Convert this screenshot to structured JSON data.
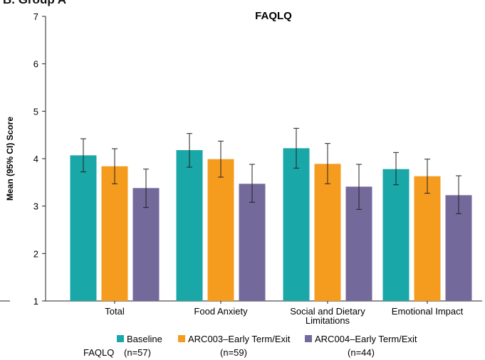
{
  "panel_label": "B. Group A",
  "chart_data": {
    "type": "bar",
    "title": "FAQLQ",
    "ylabel": "Mean (95% CI) Score",
    "xlabel": "",
    "ylim": [
      1,
      7
    ],
    "yticks": [
      1,
      2,
      3,
      4,
      5,
      6,
      7
    ],
    "categories": [
      [
        "Total"
      ],
      [
        "Food Anxiety"
      ],
      [
        "Social and Dietary",
        "Limitations"
      ],
      [
        "Emotional Impact"
      ]
    ],
    "series": [
      {
        "name": "Baseline",
        "n_label": "(n=57)",
        "color": "#1aa7a8",
        "values": [
          4.07,
          4.18,
          4.22,
          3.78
        ],
        "ci_low": [
          3.72,
          3.82,
          3.8,
          3.45
        ],
        "ci_high": [
          4.42,
          4.53,
          4.64,
          4.13
        ]
      },
      {
        "name": "ARC003–Early Term/Exit",
        "n_label": "(n=59)",
        "color": "#f59c1f",
        "values": [
          3.84,
          3.99,
          3.89,
          3.63
        ],
        "ci_low": [
          3.47,
          3.61,
          3.47,
          3.27
        ],
        "ci_high": [
          4.21,
          4.37,
          4.32,
          3.99
        ]
      },
      {
        "name": "ARC004–Early Term/Exit",
        "n_label": "(n=44)",
        "color": "#73699a",
        "values": [
          3.38,
          3.47,
          3.41,
          3.23
        ],
        "ci_low": [
          2.97,
          3.08,
          2.93,
          2.84
        ],
        "ci_high": [
          3.78,
          3.88,
          3.88,
          3.64
        ]
      }
    ],
    "legend_row_label": "FAQLQ",
    "legend_position": "bottom",
    "grid": false,
    "error_bars": "95% CI"
  }
}
